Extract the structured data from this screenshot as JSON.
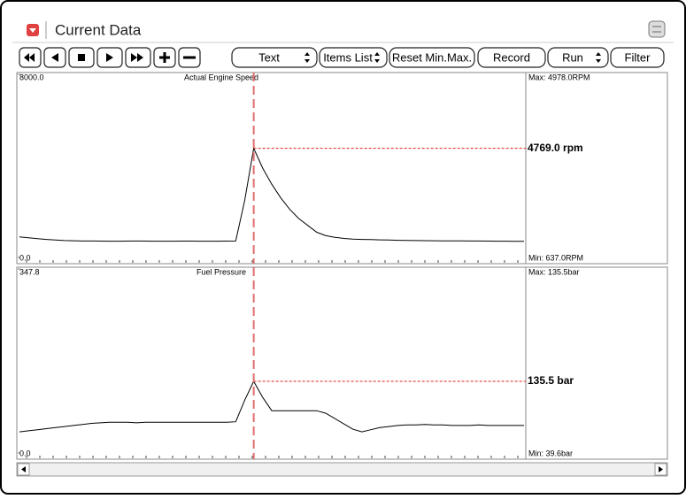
{
  "header": {
    "title": "Current Data"
  },
  "toolbar": {
    "buttons": [
      "Text",
      "Items List",
      "Reset Min.Max.",
      "Record",
      "Run",
      "Filter"
    ]
  },
  "charts": [
    {
      "type": "line",
      "title": "Actual Engine Speed",
      "ylim": [
        0,
        8000
      ],
      "yticks": [
        {
          "value": 0,
          "label": "0.0"
        },
        {
          "value": 8000,
          "label": "8000.0"
        }
      ],
      "max_label": "Max: 4978.0RPM",
      "min_label": "Min: 637.0RPM",
      "cursor": {
        "value": 4769,
        "label": "4769.0 rpm"
      },
      "color": "#000000",
      "values": [
        900,
        860,
        820,
        790,
        760,
        740,
        730,
        720,
        720,
        715,
        710,
        712,
        715,
        718,
        715,
        712,
        710,
        712,
        715,
        714,
        712,
        710,
        712,
        715,
        720,
        2500,
        4769,
        3900,
        3200,
        2600,
        2100,
        1700,
        1400,
        1100,
        950,
        880,
        830,
        800,
        790,
        780,
        770,
        760,
        750,
        745,
        740,
        735,
        730,
        728,
        725,
        722,
        720,
        718,
        715,
        712,
        710,
        708,
        705
      ]
    },
    {
      "type": "line",
      "title": "Fuel Pressure",
      "ylim": [
        0,
        347.8
      ],
      "yticks": [
        {
          "value": 0,
          "label": "0.0"
        },
        {
          "value": 347.8,
          "label": "347.8"
        }
      ],
      "max_label": "Max: 135.5bar",
      "min_label": "Min:  39.6bar",
      "cursor": {
        "value": 135.5,
        "label": "135.5 bar"
      },
      "color": "#000000",
      "values": [
        40,
        42,
        44,
        46,
        48,
        50,
        52,
        54,
        56,
        57,
        58,
        58,
        58,
        57,
        58,
        58,
        58,
        58,
        58,
        58,
        58,
        58,
        58,
        58,
        59,
        100,
        135.5,
        105,
        80,
        80,
        80,
        80,
        80,
        80,
        75,
        65,
        55,
        45,
        40,
        44,
        48,
        50,
        52,
        53,
        53,
        54,
        53,
        53,
        52,
        52,
        52,
        53,
        52,
        52,
        52,
        52,
        52
      ]
    }
  ]
}
